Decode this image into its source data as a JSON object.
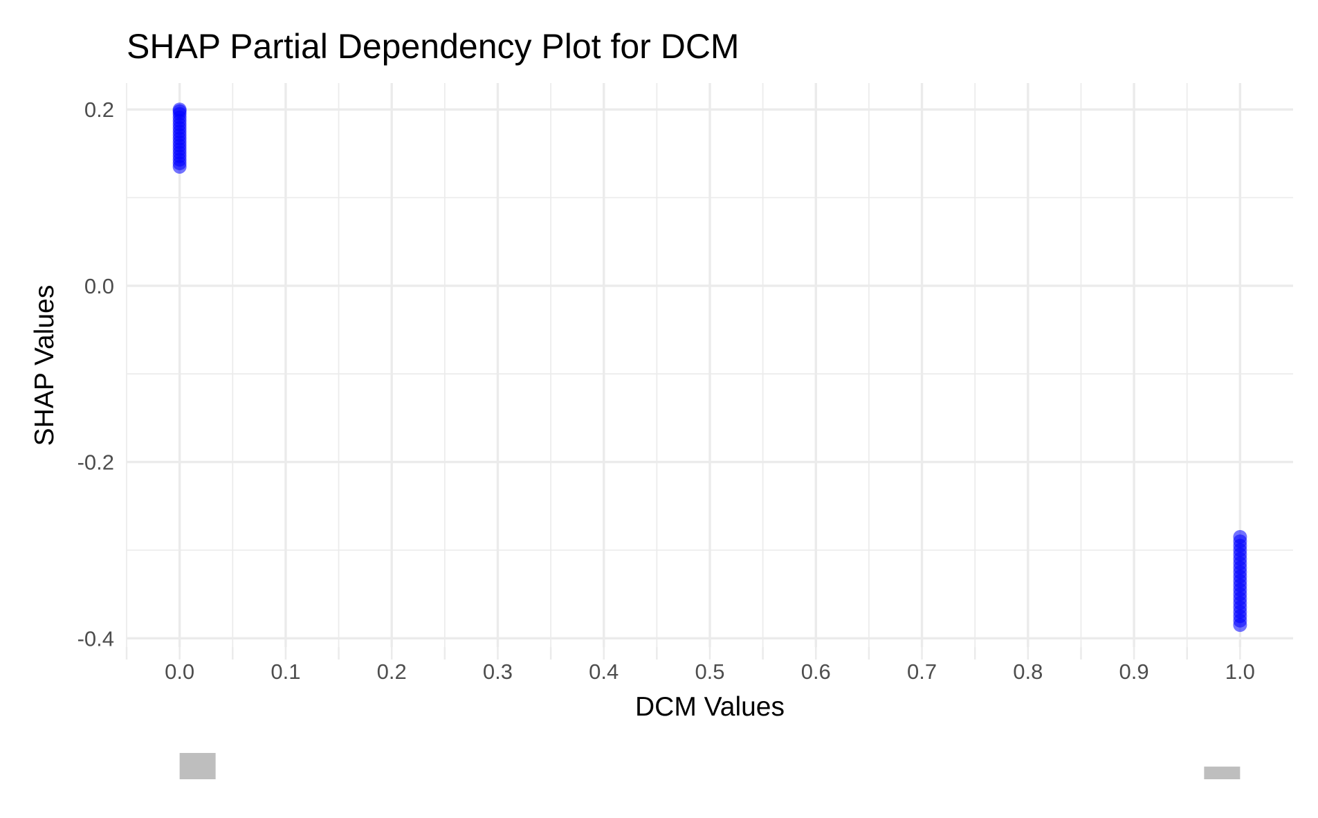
{
  "chart_data": {
    "type": "scatter",
    "title": "SHAP Partial Dependency Plot for DCM",
    "xlabel": "DCM Values",
    "ylabel": "SHAP Values",
    "xlim": [
      -0.05,
      1.05
    ],
    "ylim": [
      -0.41,
      0.23
    ],
    "x_ticks": [
      0.0,
      0.1,
      0.2,
      0.3,
      0.4,
      0.5,
      0.6,
      0.7,
      0.8,
      0.9,
      1.0
    ],
    "x_tick_labels": [
      "0.0",
      "0.1",
      "0.2",
      "0.3",
      "0.4",
      "0.5",
      "0.6",
      "0.7",
      "0.8",
      "0.9",
      "1.0"
    ],
    "y_ticks": [
      0.2,
      0.0,
      -0.2,
      -0.4
    ],
    "y_tick_labels": [
      "0.2",
      "0.0",
      "-0.2",
      "-0.4"
    ],
    "grid": true,
    "point_color": "#0000ff",
    "series": [
      {
        "x": [
          0,
          0,
          0,
          0,
          0,
          0,
          0,
          0,
          0,
          0,
          0,
          0,
          0,
          0,
          0,
          0,
          0,
          0
        ],
        "y": [
          0.135,
          0.139,
          0.143,
          0.147,
          0.151,
          0.155,
          0.159,
          0.163,
          0.167,
          0.171,
          0.175,
          0.179,
          0.183,
          0.187,
          0.191,
          0.195,
          0.198,
          0.2
        ]
      },
      {
        "x": [
          1,
          1,
          1,
          1,
          1,
          1,
          1,
          1,
          1,
          1,
          1,
          1,
          1,
          1,
          1,
          1,
          1,
          1,
          1,
          1,
          1
        ],
        "y": [
          -0.385,
          -0.38,
          -0.375,
          -0.37,
          -0.365,
          -0.36,
          -0.355,
          -0.35,
          -0.345,
          -0.34,
          -0.335,
          -0.33,
          -0.325,
          -0.32,
          -0.315,
          -0.31,
          -0.305,
          -0.3,
          -0.295,
          -0.29,
          -0.285
        ]
      }
    ],
    "marginal_histogram": {
      "color": "#bebebe",
      "bins": [
        {
          "x": 0.0,
          "count": 54
        },
        {
          "x": 1.0,
          "count": 26
        }
      ]
    }
  }
}
